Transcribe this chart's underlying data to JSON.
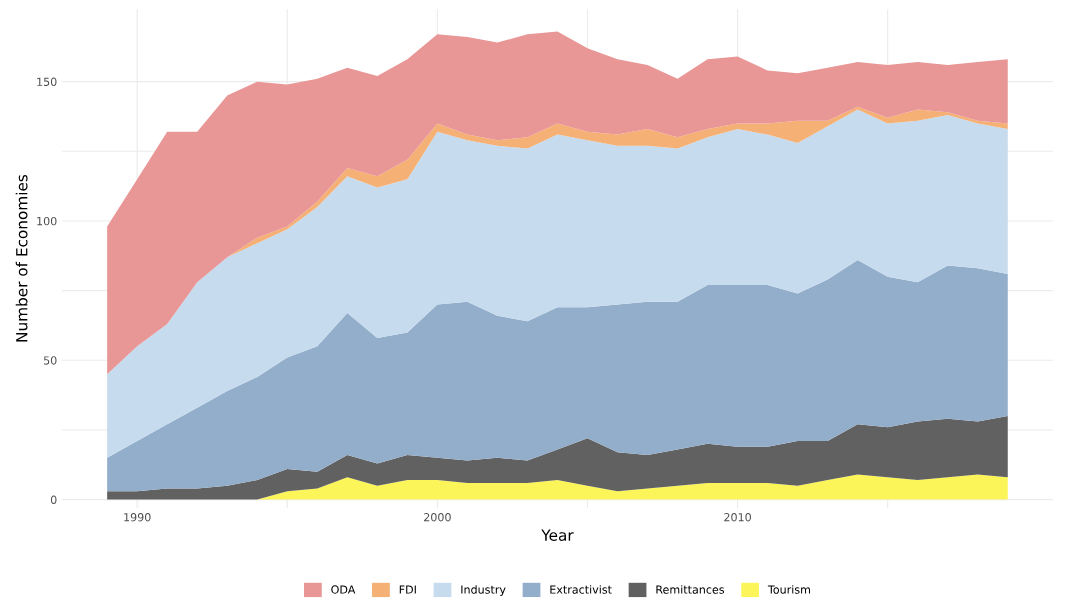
{
  "chart_data": {
    "type": "area",
    "stacked": true,
    "xlabel": "Year",
    "ylabel": "Number of Economies",
    "x": [
      1989,
      1990,
      1991,
      1992,
      1993,
      1994,
      1995,
      1996,
      1997,
      1998,
      1999,
      2000,
      2001,
      2002,
      2003,
      2004,
      2005,
      2006,
      2007,
      2008,
      2009,
      2010,
      2011,
      2012,
      2013,
      2014,
      2015,
      2016,
      2017,
      2018,
      2019
    ],
    "series": [
      {
        "name": "Tourism",
        "color": "#fbf55a",
        "values": [
          0,
          0,
          0,
          0,
          0,
          0,
          3,
          4,
          8,
          5,
          7,
          7,
          6,
          6,
          6,
          7,
          5,
          3,
          4,
          5,
          6,
          6,
          6,
          5,
          7,
          9,
          8,
          7,
          8,
          9,
          8
        ]
      },
      {
        "name": "Remittances",
        "color": "#616161",
        "values": [
          3,
          3,
          4,
          4,
          5,
          7,
          8,
          6,
          8,
          8,
          9,
          8,
          8,
          9,
          8,
          11,
          17,
          14,
          12,
          13,
          14,
          13,
          13,
          16,
          14,
          18,
          18,
          21,
          21,
          19,
          22
        ]
      },
      {
        "name": "Extractivist",
        "color": "#93aecb",
        "values": [
          12,
          18,
          23,
          29,
          34,
          37,
          40,
          45,
          51,
          45,
          44,
          55,
          57,
          51,
          50,
          51,
          47,
          53,
          55,
          53,
          57,
          58,
          58,
          53,
          58,
          59,
          54,
          50,
          55,
          55,
          51
        ]
      },
      {
        "name": "Industry",
        "color": "#c6dbed",
        "values": [
          30,
          34,
          36,
          45,
          48,
          48,
          46,
          50,
          49,
          54,
          55,
          62,
          58,
          61,
          62,
          62,
          60,
          57,
          56,
          55,
          53,
          56,
          54,
          54,
          55,
          54,
          55,
          58,
          54,
          52,
          52
        ]
      },
      {
        "name": "FDI",
        "color": "#f5b076",
        "values": [
          0,
          0,
          0,
          0,
          0,
          2,
          1,
          2,
          3,
          4,
          7,
          3,
          2,
          2,
          4,
          4,
          3,
          4,
          6,
          4,
          3,
          2,
          4,
          8,
          2,
          1,
          2,
          4,
          1,
          1,
          2
        ]
      },
      {
        "name": "ODA",
        "color": "#e99696",
        "values": [
          53,
          60,
          69,
          54,
          58,
          56,
          51,
          44,
          36,
          36,
          36,
          32,
          35,
          35,
          37,
          33,
          30,
          27,
          23,
          21,
          25,
          24,
          19,
          17,
          19,
          16,
          19,
          17,
          17,
          21,
          23
        ]
      }
    ],
    "xlim": [
      1987.5,
      2020.5
    ],
    "ylim": [
      -3,
      176
    ],
    "xticks": [
      1990,
      {
        "value": 1995,
        "label": null
      },
      2000,
      {
        "value": 2005,
        "label": null
      },
      2010,
      {
        "value": 2015,
        "label": null
      }
    ],
    "yticks": [
      0,
      {
        "value": 25,
        "label": null
      },
      50,
      {
        "value": 75,
        "label": null
      },
      100,
      {
        "value": 125,
        "label": null
      },
      150
    ],
    "grid": true,
    "legend": "bottom"
  }
}
